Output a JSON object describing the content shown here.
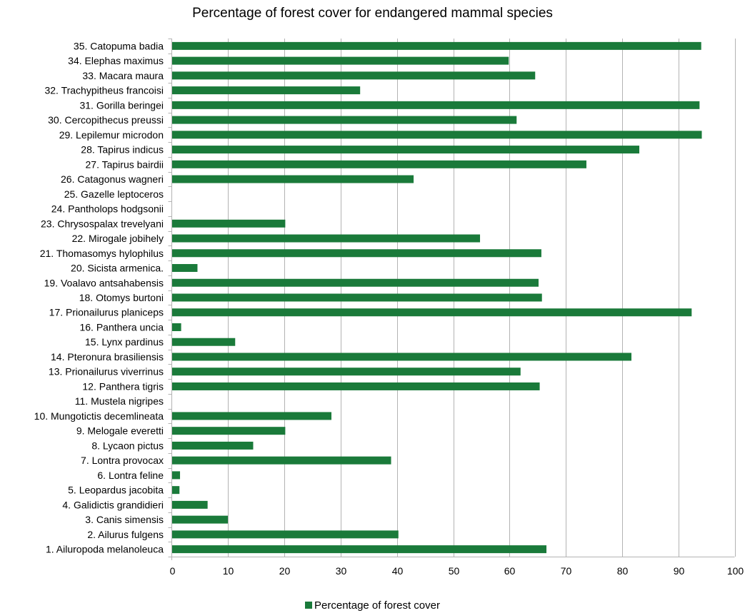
{
  "colors": {
    "bar": "#1a7a3a",
    "grid": "#b3b3b3",
    "axis": "#b3b3b3"
  },
  "chart_data": {
    "type": "bar",
    "orientation": "horizontal",
    "title": "Percentage of forest cover for endangered mammal species",
    "xlabel": "",
    "ylabel": "",
    "xlim": [
      0,
      100
    ],
    "x_ticks": [
      0,
      10,
      20,
      30,
      40,
      50,
      60,
      70,
      80,
      90,
      100
    ],
    "grid": true,
    "legend_position": "bottom",
    "categories": [
      "1.  Ailuropoda melanoleuca",
      "2.  Ailurus fulgens",
      "3.  Canis simensis",
      "4.  Galidictis grandidieri",
      "5.  Leopardus jacobita",
      "6.  Lontra feline",
      "7.  Lontra provocax",
      "8.  Lycaon pictus",
      "9.  Melogale everetti",
      "10.  Mungotictis decemlineata",
      "11.  Mustela nigripes",
      "12.  Panthera tigris",
      "13.  Prionailurus viverrinus",
      "14.  Pteronura brasiliensis",
      "15.  Lynx pardinus",
      "16.  Panthera uncia",
      "17.  Prionailurus planiceps",
      "18.  Otomys burtoni",
      "19.  Voalavo antsahabensis",
      "20. Sicista armenica.",
      "21.  Thomasomys hylophilus",
      "22.  Mirogale jobihely",
      "23.  Chrysospalax trevelyani",
      "24. Pantholops hodgsonii",
      "25.  Gazelle leptoceros",
      "26.  Catagonus wagneri",
      "27.  Tapirus bairdii",
      "28.  Tapirus indicus",
      "29.  Lepilemur microdon",
      "30.  Cercopithecus preussi",
      "31.  Gorilla beringei",
      "32.  Trachypitheus francoisi",
      "33. Macara maura",
      "34.  Elephas maximus",
      "35.  Catopuma badia"
    ],
    "series": [
      {
        "name": "Percentage of forest cover",
        "values": [
          66.5,
          40.2,
          9.9,
          6.3,
          1.3,
          1.4,
          38.9,
          14.4,
          20.1,
          28.3,
          0,
          65.3,
          61.9,
          81.6,
          11.2,
          1.6,
          92.3,
          65.7,
          65.1,
          4.5,
          65.6,
          54.7,
          20.1,
          0,
          0,
          42.9,
          73.6,
          83.0,
          94.1,
          61.2,
          93.7,
          33.4,
          64.5,
          59.8,
          94.0
        ]
      }
    ]
  }
}
